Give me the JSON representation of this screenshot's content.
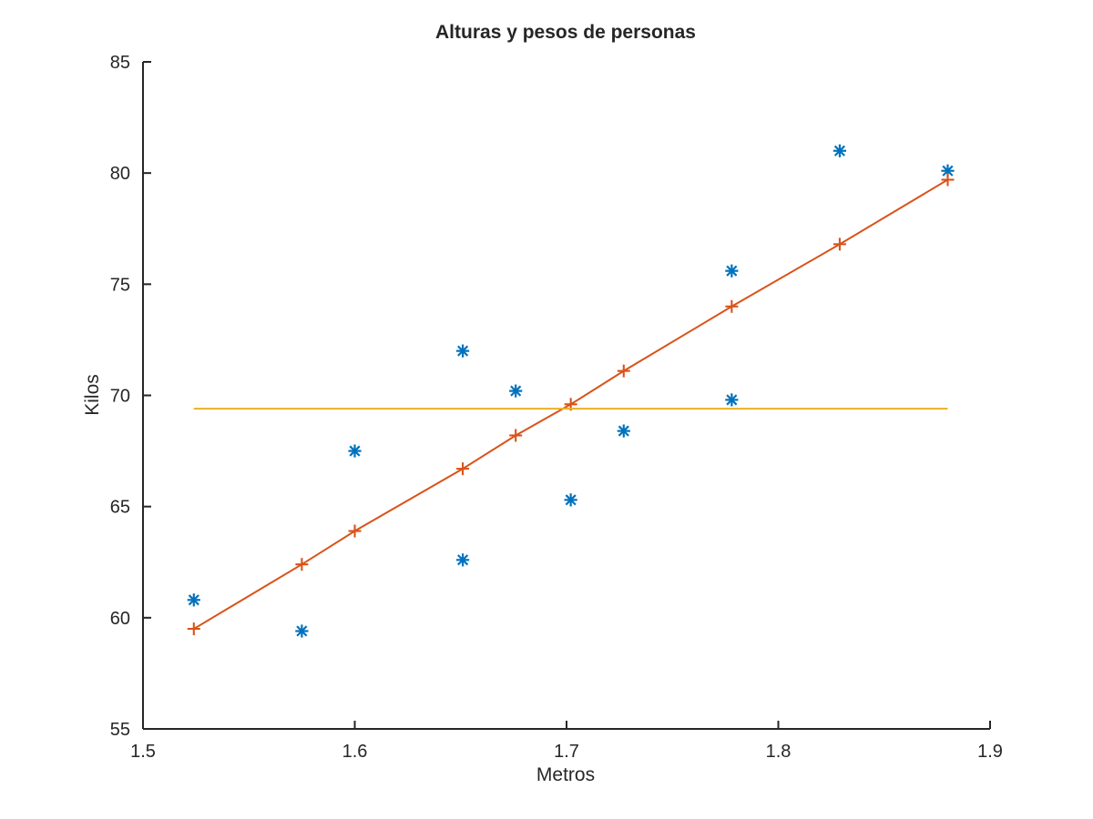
{
  "chart_data": {
    "type": "scatter",
    "title": "Alturas y pesos de personas",
    "xlabel": "Metros",
    "ylabel": "Kilos",
    "xlim": [
      1.5,
      1.9
    ],
    "ylim": [
      55,
      85
    ],
    "xticks": [
      "1.5",
      "1.6",
      "1.7",
      "1.8",
      "1.9"
    ],
    "yticks": [
      "55",
      "60",
      "65",
      "70",
      "75",
      "80",
      "85"
    ],
    "grid": false,
    "legend": "none",
    "colors": {
      "observed": "#0072BD",
      "fit": "#D95319",
      "mean": "#EDB120",
      "axis": "#262626"
    },
    "series": [
      {
        "marker": "asterisk",
        "line": false,
        "x": [
          1.524,
          1.575,
          1.6,
          1.651,
          1.651,
          1.676,
          1.702,
          1.727,
          1.778,
          1.778,
          1.829,
          1.88
        ],
        "y": [
          60.8,
          59.4,
          67.5,
          72.0,
          62.6,
          70.2,
          65.3,
          68.4,
          75.6,
          69.8,
          81.0,
          80.1
        ]
      },
      {
        "marker": "plus",
        "line": true,
        "x": [
          1.524,
          1.575,
          1.6,
          1.651,
          1.676,
          1.702,
          1.727,
          1.778,
          1.829,
          1.88
        ],
        "y": [
          59.5,
          62.4,
          63.9,
          66.7,
          68.2,
          69.6,
          71.1,
          74.0,
          76.8,
          79.7
        ]
      },
      {
        "marker": "none",
        "line": true,
        "x": [
          1.524,
          1.88
        ],
        "y": [
          69.4,
          69.4
        ]
      }
    ]
  }
}
